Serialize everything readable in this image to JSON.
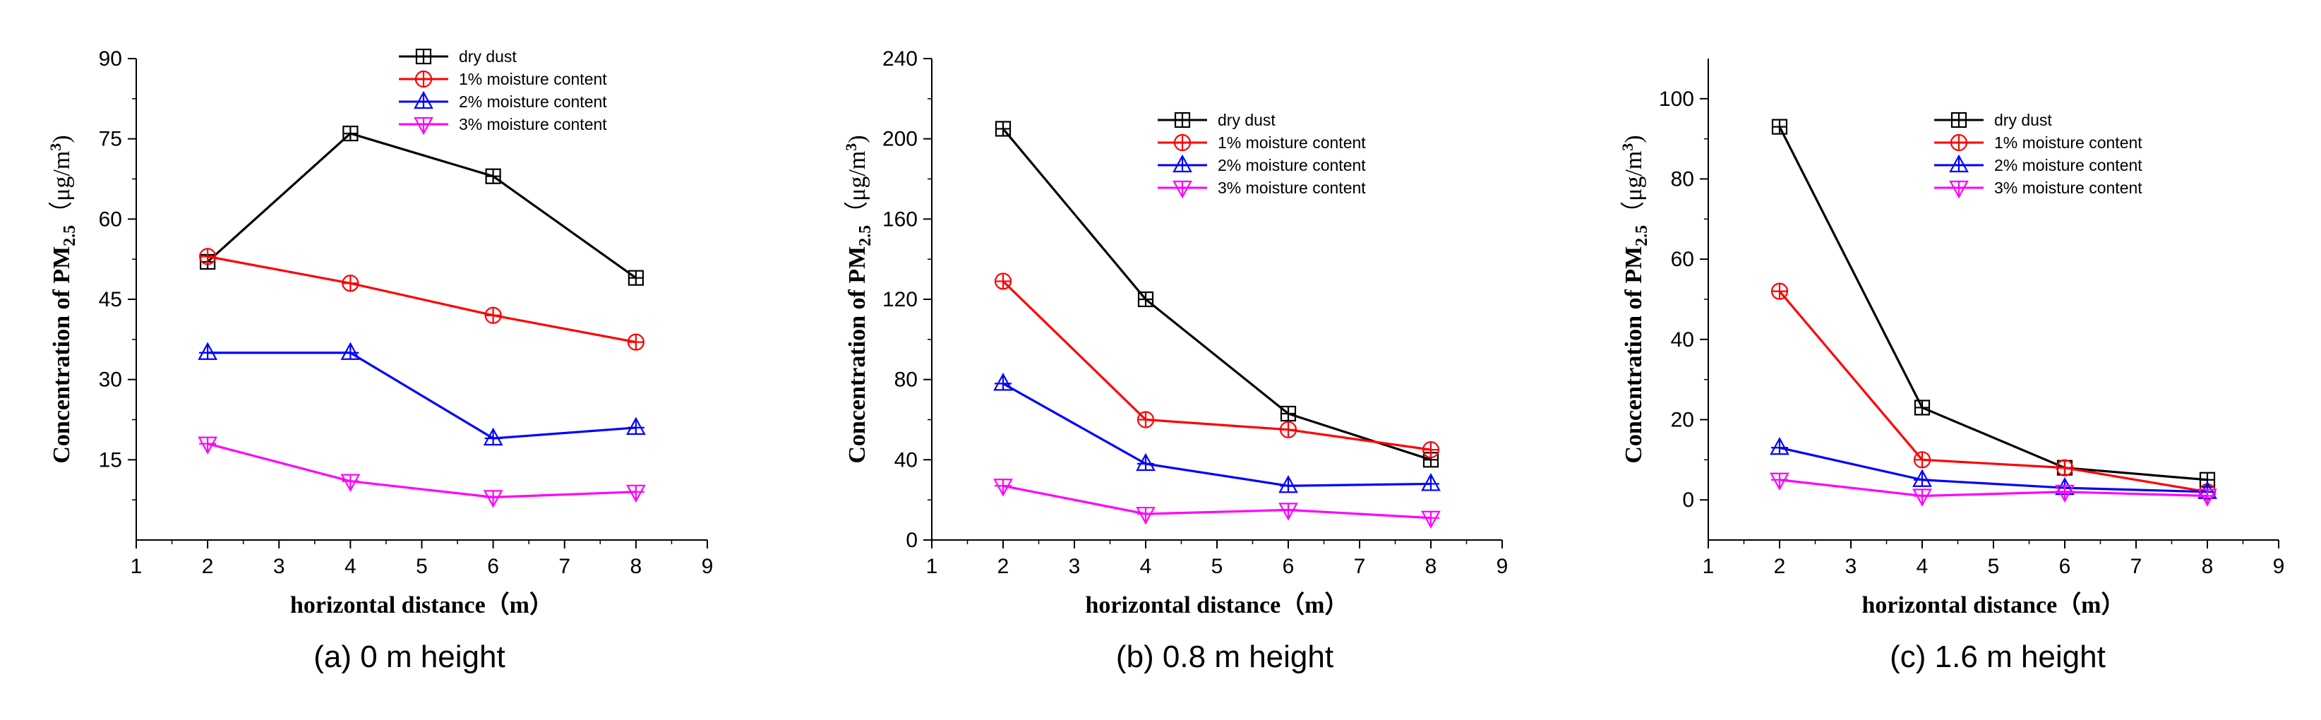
{
  "colors": {
    "dry dust": "#000000",
    "1% moisture content": "#ff0000",
    "2% moisture content": "#0000ff",
    "3% moisture content": "#ff00ff"
  },
  "ylabel_text": {
    "main": "Concentration of PM",
    "sub": "2.5",
    "unit_open": "（μg/m",
    "unit_sup": "3",
    "unit_close": ")"
  },
  "chart_data": [
    {
      "type": "line",
      "caption": "(a) 0 m height",
      "xlabel": "horizontal distance（m）",
      "ylabel": "Concentration of PM2.5（μg/m3)",
      "xlim": [
        1,
        9
      ],
      "ylim": [
        0,
        90
      ],
      "xticks": [
        1,
        2,
        3,
        4,
        5,
        6,
        7,
        8,
        9
      ],
      "yticks": [
        15,
        30,
        45,
        60,
        75,
        90
      ],
      "x": [
        2,
        4,
        6,
        8
      ],
      "legend_position": "top-center",
      "series": [
        {
          "name": "dry dust",
          "marker": "square-cross",
          "values": [
            52,
            76,
            68,
            49
          ]
        },
        {
          "name": "1% moisture content",
          "marker": "circle-cross",
          "values": [
            53,
            48,
            42,
            37
          ]
        },
        {
          "name": "2% moisture content",
          "marker": "triangle-up",
          "values": [
            35,
            35,
            19,
            21
          ]
        },
        {
          "name": "3% moisture content",
          "marker": "triangle-down",
          "values": [
            18,
            11,
            8,
            9
          ]
        }
      ]
    },
    {
      "type": "line",
      "caption": "(b) 0.8 m height",
      "xlabel": "horizontal distance（m）",
      "ylabel": "Concentration of PM2.5（μg/m3)",
      "xlim": [
        1,
        9
      ],
      "ylim": [
        0,
        240
      ],
      "xticks": [
        1,
        2,
        3,
        4,
        5,
        6,
        7,
        8,
        9
      ],
      "yticks": [
        0,
        40,
        80,
        120,
        160,
        200,
        240
      ],
      "x": [
        2,
        4,
        6,
        8
      ],
      "legend_position": "top-right",
      "series": [
        {
          "name": "dry dust",
          "marker": "square-cross",
          "values": [
            205,
            120,
            63,
            40
          ]
        },
        {
          "name": "1% moisture content",
          "marker": "circle-cross",
          "values": [
            129,
            60,
            55,
            45
          ]
        },
        {
          "name": "2% moisture content",
          "marker": "triangle-up",
          "values": [
            78,
            38,
            27,
            28
          ]
        },
        {
          "name": "3% moisture content",
          "marker": "triangle-down",
          "values": [
            27,
            13,
            15,
            11
          ]
        }
      ]
    },
    {
      "type": "line",
      "caption": "(c) 1.6 m height",
      "xlabel": "horizontal distance（m）",
      "ylabel": "Concentration of PM2.5（μg/m3)",
      "xlim": [
        1,
        9
      ],
      "ylim": [
        -10,
        110
      ],
      "xticks": [
        1,
        2,
        3,
        4,
        5,
        6,
        7,
        8,
        9
      ],
      "yticks": [
        0,
        20,
        40,
        60,
        80,
        100
      ],
      "x": [
        2,
        4,
        6,
        8
      ],
      "legend_position": "top-right",
      "series": [
        {
          "name": "dry dust",
          "marker": "square-cross",
          "values": [
            93,
            23,
            8,
            5
          ]
        },
        {
          "name": "1% moisture content",
          "marker": "circle-cross",
          "values": [
            52,
            10,
            8,
            2
          ]
        },
        {
          "name": "2% moisture content",
          "marker": "triangle-up",
          "values": [
            13,
            5,
            3,
            2
          ]
        },
        {
          "name": "3% moisture content",
          "marker": "triangle-down",
          "values": [
            5,
            1,
            2,
            1
          ]
        }
      ]
    }
  ]
}
